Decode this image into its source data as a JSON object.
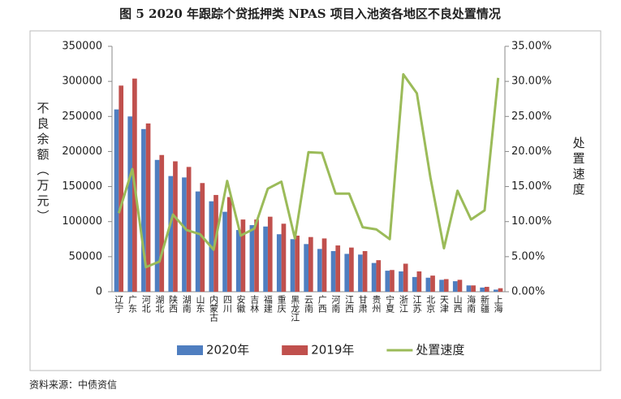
{
  "chart_data": {
    "type": "bar-line",
    "title": "图 5 2020 年跟踪个贷抵押类 NPAS 项目入池资各地区不良处置情况",
    "y_label": "不良余额（万元）",
    "y2_label": "处置速度",
    "source": "资料来源：中债资信",
    "categories": [
      "辽宁",
      "广东",
      "河北",
      "湖北",
      "陕西",
      "湖南",
      "山东",
      "内蒙古",
      "四川",
      "安徽",
      "吉林",
      "福建",
      "重庆",
      "黑龙江",
      "云南",
      "广西",
      "河南",
      "江西",
      "甘肃",
      "贵州",
      "宁夏",
      "浙江",
      "江苏",
      "北京",
      "天津",
      "山西",
      "海南",
      "新疆",
      "上海"
    ],
    "series": [
      {
        "name": "2020年",
        "type": "bar",
        "color": "#4f7ec0",
        "values": [
          260000,
          250000,
          232000,
          188000,
          165000,
          163000,
          143000,
          129000,
          114000,
          88000,
          95000,
          93000,
          82000,
          75000,
          68000,
          61000,
          58000,
          54000,
          53000,
          41000,
          30000,
          29000,
          21000,
          20000,
          17000,
          15000,
          9000,
          6000,
          3000
        ]
      },
      {
        "name": "2019年",
        "type": "bar",
        "color": "#c0504d",
        "values": [
          294000,
          304000,
          240000,
          195000,
          186000,
          178000,
          155000,
          138000,
          135000,
          103000,
          103000,
          107000,
          97000,
          80000,
          78000,
          76000,
          66000,
          63000,
          58000,
          45000,
          31000,
          40000,
          29000,
          23000,
          18000,
          17000,
          9000,
          7000,
          5000
        ]
      },
      {
        "name": "处置速度",
        "type": "line",
        "axis": "y2",
        "color": "#9bbb59",
        "values": [
          11.2,
          17.5,
          3.5,
          4.3,
          11.0,
          8.8,
          8.2,
          6.0,
          15.8,
          8.0,
          9.0,
          14.7,
          15.7,
          7.6,
          19.9,
          19.8,
          14.0,
          14.0,
          9.2,
          8.9,
          7.5,
          31.0,
          28.3,
          16.3,
          6.2,
          14.4,
          10.3,
          11.6,
          30.5
        ]
      }
    ],
    "ylim": [
      0,
      350000
    ],
    "yticks": [
      0,
      50000,
      100000,
      150000,
      200000,
      250000,
      300000,
      350000
    ],
    "y2lim": [
      0,
      35
    ],
    "y2ticks": [
      {
        "value": 0,
        "label": "0.00%"
      },
      {
        "value": 5,
        "label": "5.00%"
      },
      {
        "value": 10,
        "label": "10.00%"
      },
      {
        "value": 15,
        "label": "15.00%"
      },
      {
        "value": 20,
        "label": "20.00%"
      },
      {
        "value": 25,
        "label": "25.00%"
      },
      {
        "value": 30,
        "label": "30.00%"
      },
      {
        "value": 35,
        "label": "35.00%"
      }
    ]
  }
}
